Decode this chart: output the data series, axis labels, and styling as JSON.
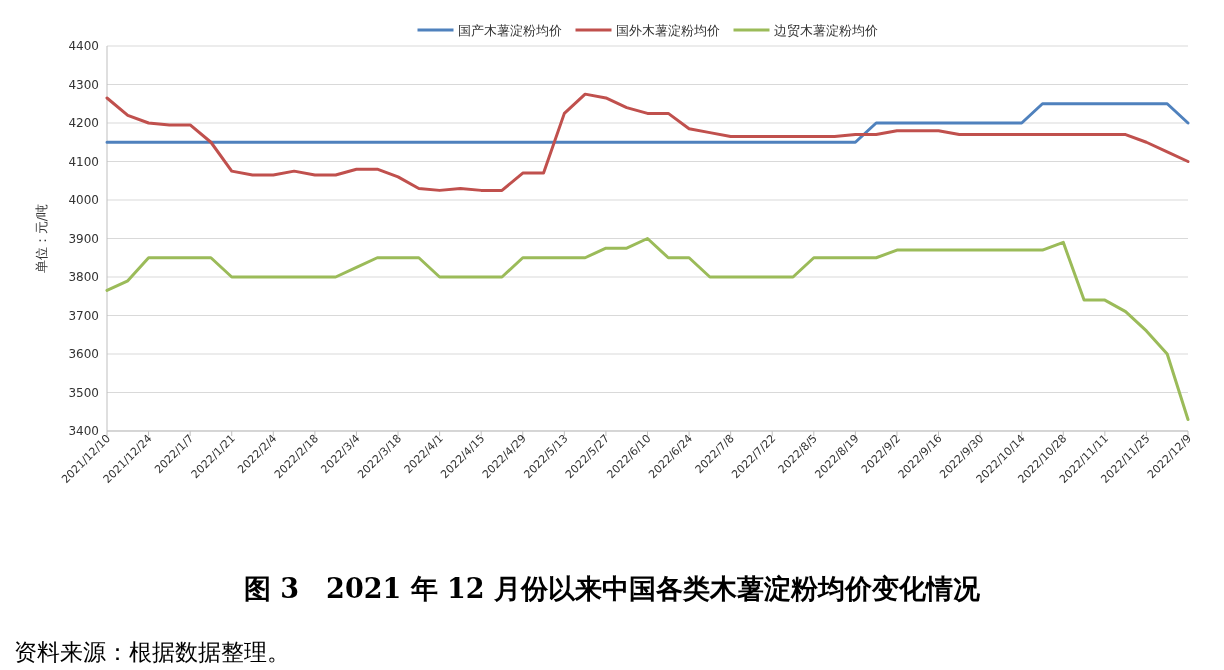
{
  "chart_data": {
    "type": "line",
    "title": "图 3　2021 年 12 月份以来中国各类木薯淀粉均价变化情况",
    "ylabel": "单位：元/吨",
    "annotations": [
      "资料来源：根据数据整理。"
    ],
    "legend": "top",
    "grid": "y",
    "x": [
      "2021-12-10",
      "2021-12-17",
      "2021-12-24",
      "2021-12-31",
      "2022-01-07",
      "2022-01-14",
      "2022-01-21",
      "2022-01-28",
      "2022-02-04",
      "2022-02-11",
      "2022-02-18",
      "2022-02-25",
      "2022-03-04",
      "2022-03-11",
      "2022-03-18",
      "2022-03-25",
      "2022-04-01",
      "2022-04-08",
      "2022-04-15",
      "2022-04-22",
      "2022-04-29",
      "2022-05-06",
      "2022-05-13",
      "2022-05-20",
      "2022-05-27",
      "2022-06-03",
      "2022-06-10",
      "2022-06-17",
      "2022-06-24",
      "2022-07-01",
      "2022-07-08",
      "2022-07-15",
      "2022-07-22",
      "2022-07-29",
      "2022-08-05",
      "2022-08-12",
      "2022-08-19",
      "2022-08-26",
      "2022-09-02",
      "2022-09-09",
      "2022-09-16",
      "2022-09-23",
      "2022-09-30",
      "2022-10-07",
      "2022-10-14",
      "2022-10-21",
      "2022-10-28",
      "2022-11-04",
      "2022-11-11",
      "2022-11-18",
      "2022-11-25",
      "2022-12-02",
      "2022-12-09"
    ],
    "xlim": [
      "2021-12-10",
      "2022-12-09"
    ],
    "xticks": [
      {
        "value": "2021-12-10",
        "label": "2021/12/10"
      },
      {
        "value": "2021-12-24",
        "label": "2021/12/24"
      },
      {
        "value": "2022-01-07",
        "label": "2022/1/7"
      },
      {
        "value": "2022-01-21",
        "label": "2022/1/21"
      },
      {
        "value": "2022-02-04",
        "label": "2022/2/4"
      },
      {
        "value": "2022-02-18",
        "label": "2022/2/18"
      },
      {
        "value": "2022-03-04",
        "label": "2022/3/4"
      },
      {
        "value": "2022-03-18",
        "label": "2022/3/18"
      },
      {
        "value": "2022-04-01",
        "label": "2022/4/1"
      },
      {
        "value": "2022-04-15",
        "label": "2022/4/15"
      },
      {
        "value": "2022-04-29",
        "label": "2022/4/29"
      },
      {
        "value": "2022-05-13",
        "label": "2022/5/13"
      },
      {
        "value": "2022-05-27",
        "label": "2022/5/27"
      },
      {
        "value": "2022-06-10",
        "label": "2022/6/10"
      },
      {
        "value": "2022-06-24",
        "label": "2022/6/24"
      },
      {
        "value": "2022-07-08",
        "label": "2022/7/8"
      },
      {
        "value": "2022-07-22",
        "label": "2022/7/22"
      },
      {
        "value": "2022-08-05",
        "label": "2022/8/5"
      },
      {
        "value": "2022-08-19",
        "label": "2022/8/19"
      },
      {
        "value": "2022-09-02",
        "label": "2022/9/2"
      },
      {
        "value": "2022-09-16",
        "label": "2022/9/16"
      },
      {
        "value": "2022-09-30",
        "label": "2022/9/30"
      },
      {
        "value": "2022-10-14",
        "label": "2022/10/14"
      },
      {
        "value": "2022-10-28",
        "label": "2022/10/28"
      },
      {
        "value": "2022-11-11",
        "label": "2022/11/11"
      },
      {
        "value": "2022-11-25",
        "label": "2022/11/25"
      },
      {
        "value": "2022-12-09",
        "label": "2022/12/9"
      }
    ],
    "ylim": [
      3400,
      4400
    ],
    "yticks": [
      3400,
      3500,
      3600,
      3700,
      3800,
      3900,
      4000,
      4100,
      4200,
      4300,
      4400
    ],
    "series": [
      {
        "name": "国产木薯淀粉均价",
        "color": "#4f81bd",
        "values": [
          4150,
          4150,
          4150,
          4150,
          4150,
          4150,
          4150,
          4150,
          4150,
          4150,
          4150,
          4150,
          4150,
          4150,
          4150,
          4150,
          4150,
          4150,
          4150,
          4150,
          4150,
          4150,
          4150,
          4150,
          4150,
          4150,
          4150,
          4150,
          4150,
          4150,
          4150,
          4150,
          4150,
          4150,
          4150,
          4150,
          4150,
          4200,
          4200,
          4200,
          4200,
          4200,
          4200,
          4200,
          4200,
          4250,
          4250,
          4250,
          4250,
          4250,
          4250,
          4250,
          4200
        ]
      },
      {
        "name": "国外木薯淀粉均价",
        "color": "#c0504d",
        "values": [
          4265,
          4220,
          4200,
          4195,
          4195,
          4150,
          4075,
          4065,
          4065,
          4075,
          4065,
          4065,
          4080,
          4080,
          4060,
          4030,
          4025,
          4030,
          4025,
          4025,
          4070,
          4070,
          4225,
          4275,
          4265,
          4240,
          4225,
          4225,
          4185,
          4175,
          4165,
          4165,
          4165,
          4165,
          4165,
          4165,
          4170,
          4170,
          4180,
          4180,
          4180,
          4170,
          4170,
          4170,
          4170,
          4170,
          4170,
          4170,
          4170,
          4170,
          4150,
          4125,
          4100
        ]
      },
      {
        "name": "边贸木薯淀粉均价",
        "color": "#9bbb59",
        "values": [
          3765,
          3790,
          3850,
          3850,
          3850,
          3850,
          3800,
          3800,
          3800,
          3800,
          3800,
          3800,
          3825,
          3850,
          3850,
          3850,
          3800,
          3800,
          3800,
          3800,
          3850,
          3850,
          3850,
          3850,
          3875,
          3875,
          3900,
          3850,
          3850,
          3800,
          3800,
          3800,
          3800,
          3800,
          3850,
          3850,
          3850,
          3850,
          3870,
          3870,
          3870,
          3870,
          3870,
          3870,
          3870,
          3870,
          3890,
          3740,
          3740,
          3710,
          3660,
          3600,
          3430
        ]
      }
    ]
  }
}
